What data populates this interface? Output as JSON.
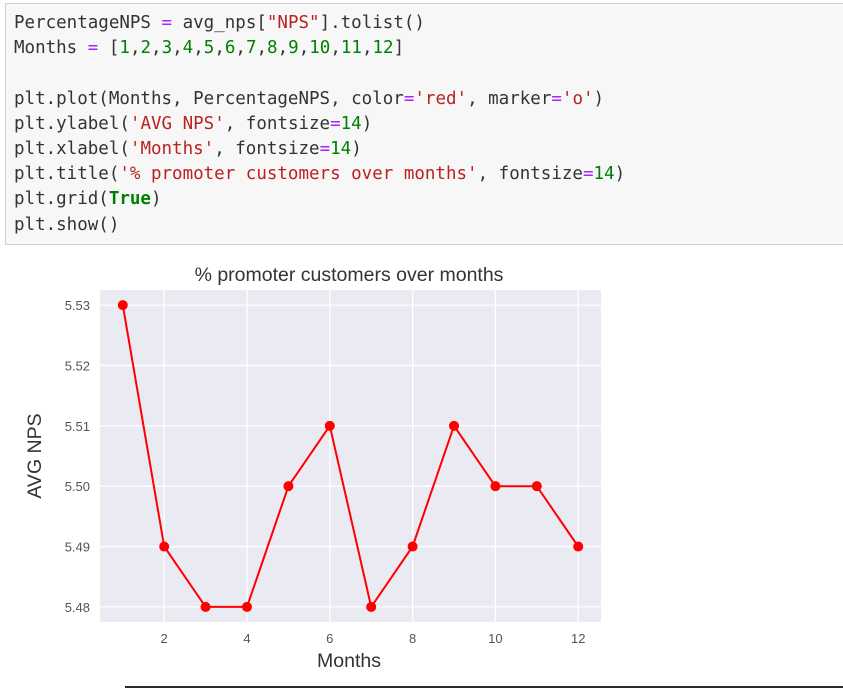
{
  "code_cell": {
    "lines": [
      [
        {
          "t": "PercentageNPS ",
          "c": "default"
        },
        {
          "t": "=",
          "c": "op"
        },
        {
          "t": " avg_nps[",
          "c": "default"
        },
        {
          "t": "\"NPS\"",
          "c": "str"
        },
        {
          "t": "].tolist()",
          "c": "default"
        }
      ],
      [
        {
          "t": "Months ",
          "c": "default"
        },
        {
          "t": "=",
          "c": "op"
        },
        {
          "t": " [",
          "c": "default"
        },
        {
          "t": "1",
          "c": "num"
        },
        {
          "t": ",",
          "c": "default"
        },
        {
          "t": "2",
          "c": "num"
        },
        {
          "t": ",",
          "c": "default"
        },
        {
          "t": "3",
          "c": "num"
        },
        {
          "t": ",",
          "c": "default"
        },
        {
          "t": "4",
          "c": "num"
        },
        {
          "t": ",",
          "c": "default"
        },
        {
          "t": "5",
          "c": "num"
        },
        {
          "t": ",",
          "c": "default"
        },
        {
          "t": "6",
          "c": "num"
        },
        {
          "t": ",",
          "c": "default"
        },
        {
          "t": "7",
          "c": "num"
        },
        {
          "t": ",",
          "c": "default"
        },
        {
          "t": "8",
          "c": "num"
        },
        {
          "t": ",",
          "c": "default"
        },
        {
          "t": "9",
          "c": "num"
        },
        {
          "t": ",",
          "c": "default"
        },
        {
          "t": "10",
          "c": "num"
        },
        {
          "t": ",",
          "c": "default"
        },
        {
          "t": "11",
          "c": "num"
        },
        {
          "t": ",",
          "c": "default"
        },
        {
          "t": "12",
          "c": "num"
        },
        {
          "t": "]",
          "c": "default"
        }
      ],
      [],
      [
        {
          "t": "plt.plot(Months, PercentageNPS, color",
          "c": "default"
        },
        {
          "t": "=",
          "c": "op"
        },
        {
          "t": "'red'",
          "c": "str"
        },
        {
          "t": ", marker",
          "c": "default"
        },
        {
          "t": "=",
          "c": "op"
        },
        {
          "t": "'o'",
          "c": "str"
        },
        {
          "t": ")",
          "c": "default"
        }
      ],
      [
        {
          "t": "plt.ylabel(",
          "c": "default"
        },
        {
          "t": "'AVG NPS'",
          "c": "str"
        },
        {
          "t": ", fontsize",
          "c": "default"
        },
        {
          "t": "=",
          "c": "op"
        },
        {
          "t": "14",
          "c": "num"
        },
        {
          "t": ")",
          "c": "default"
        }
      ],
      [
        {
          "t": "plt.xlabel(",
          "c": "default"
        },
        {
          "t": "'Months'",
          "c": "str"
        },
        {
          "t": ", fontsize",
          "c": "default"
        },
        {
          "t": "=",
          "c": "op"
        },
        {
          "t": "14",
          "c": "num"
        },
        {
          "t": ")",
          "c": "default"
        }
      ],
      [
        {
          "t": "plt.title(",
          "c": "default"
        },
        {
          "t": "'% promoter customers over months'",
          "c": "str"
        },
        {
          "t": ", fontsize",
          "c": "default"
        },
        {
          "t": "=",
          "c": "op"
        },
        {
          "t": "14",
          "c": "num"
        },
        {
          "t": ")",
          "c": "default"
        }
      ],
      [
        {
          "t": "plt.grid(",
          "c": "default"
        },
        {
          "t": "True",
          "c": "kw"
        },
        {
          "t": ")",
          "c": "default"
        }
      ],
      [
        {
          "t": "plt.show()",
          "c": "default"
        }
      ]
    ]
  },
  "colors": {
    "plot_background": "#eaeaf2",
    "grid": "#ffffff",
    "line": "#ff0000",
    "tick_label": "#555555",
    "axis_label": "#333333"
  },
  "chart_data": {
    "type": "line",
    "title": "% promoter customers over months",
    "xlabel": "Months",
    "ylabel": "AVG NPS",
    "x": [
      1,
      2,
      3,
      4,
      5,
      6,
      7,
      8,
      9,
      10,
      11,
      12
    ],
    "series": [
      {
        "values": [
          5.53,
          5.49,
          5.48,
          5.48,
          5.5,
          5.51,
          5.48,
          5.49,
          5.51,
          5.5,
          5.5,
          5.49
        ],
        "color": "#ff0000",
        "marker": "o"
      }
    ],
    "xticks": [
      2,
      4,
      6,
      8,
      10,
      12
    ],
    "xtick_labels": [
      "2",
      "4",
      "6",
      "8",
      "10",
      "12"
    ],
    "yticks": [
      5.48,
      5.49,
      5.5,
      5.51,
      5.52,
      5.53
    ],
    "ytick_labels": [
      "5.48",
      "5.49",
      "5.50",
      "5.51",
      "5.52",
      "5.53"
    ],
    "xlim": [
      0.45,
      12.55
    ],
    "ylim": [
      5.4775,
      5.5325
    ],
    "grid": true
  }
}
